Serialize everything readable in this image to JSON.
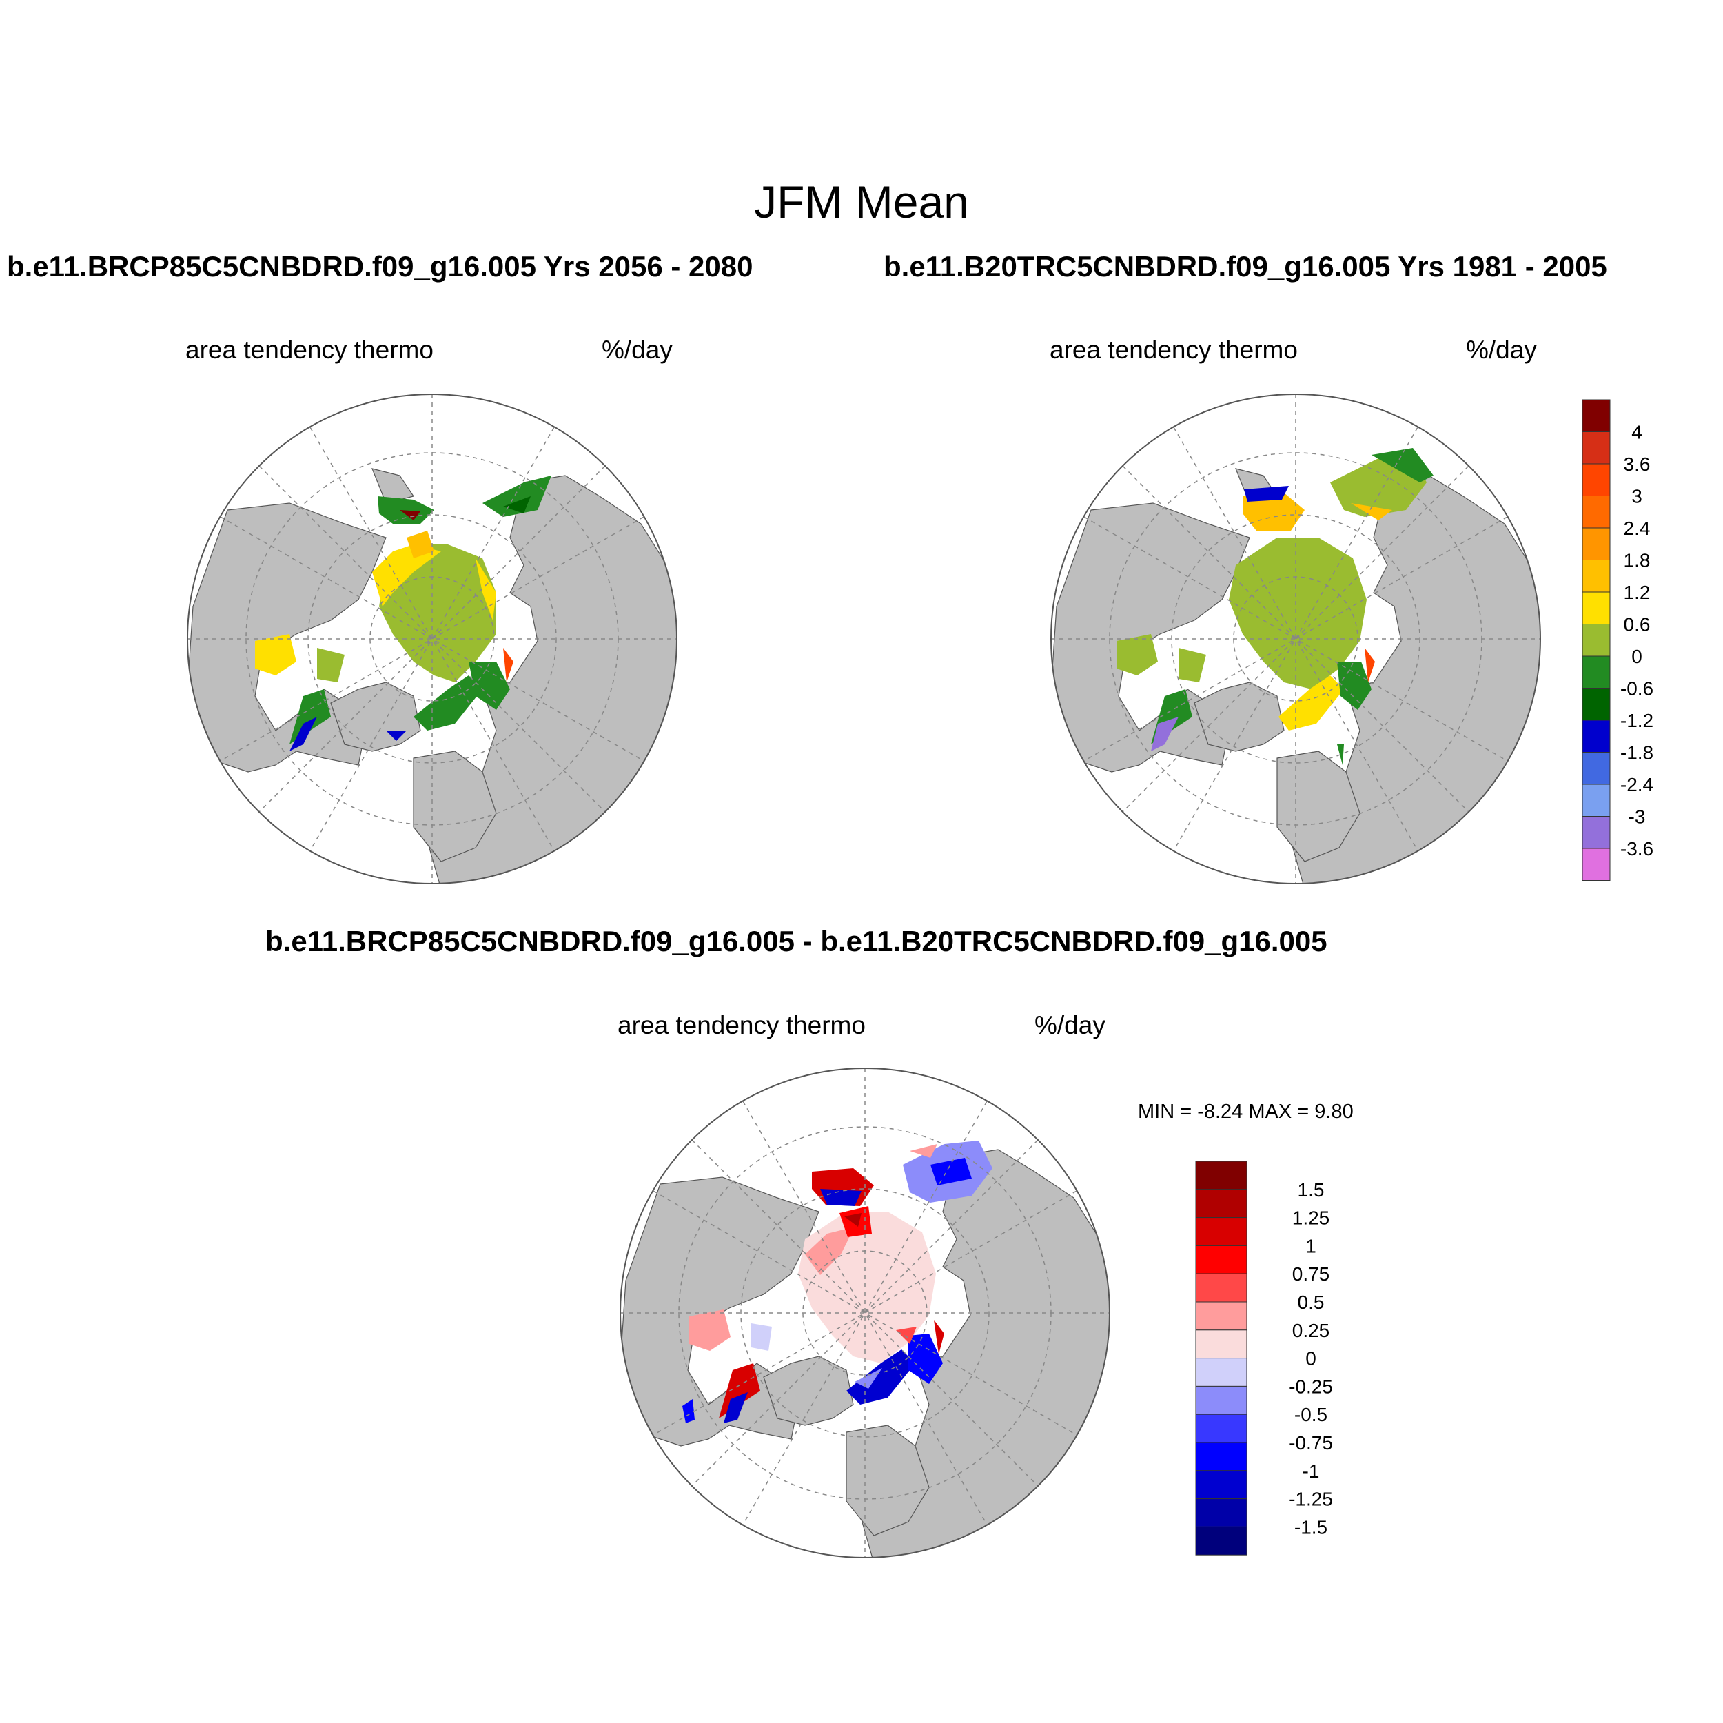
{
  "main_title": "JFM Mean",
  "panel_left": {
    "case_title": "b.e11.BRCP85C5CNBDRD.f09_g16.005  Yrs 2056 - 2080",
    "left_label": "area tendency thermo",
    "right_label": "%/day"
  },
  "panel_right": {
    "case_title": "b.e11.B20TRC5CNBDRD.f09_g16.005  Yrs 1981 - 2005",
    "left_label": "area tendency thermo",
    "right_label": "%/day"
  },
  "panel_diff": {
    "case_title": "b.e11.BRCP85C5CNBDRD.f09_g16.005 - b.e11.B20TRC5CNBDRD.f09_g16.005",
    "left_label": "area tendency thermo",
    "right_label": "%/day",
    "minmax": "MIN =  -8.24 MAX =   9.80"
  },
  "colorbar_main": {
    "colors": [
      "#800000",
      "#d62f16",
      "#ff4500",
      "#ff6a00",
      "#ff9500",
      "#ffc000",
      "#ffe000",
      "#9abc30",
      "#228b22",
      "#006400",
      "#0000cd",
      "#4169e1",
      "#7aa0f0",
      "#9370db",
      "#e070e0"
    ],
    "labels": [
      "4",
      "3.6",
      "3",
      "2.4",
      "1.8",
      "1.2",
      "0.6",
      "0",
      "-0.6",
      "-1.2",
      "-1.8",
      "-2.4",
      "-3",
      "-3.6"
    ]
  },
  "colorbar_diff": {
    "colors": [
      "#800000",
      "#b00000",
      "#d80000",
      "#ff0000",
      "#ff4848",
      "#ff9c9c",
      "#fadcdc",
      "#d0d0fa",
      "#8c8cfa",
      "#3838ff",
      "#0000ff",
      "#0000d0",
      "#0000a8",
      "#00007c"
    ],
    "labels": [
      "1.5",
      "1.25",
      "1",
      "0.75",
      "0.5",
      "0.25",
      "0",
      "-0.25",
      "-0.5",
      "-0.75",
      "-1",
      "-1.25",
      "-1.5"
    ]
  }
}
